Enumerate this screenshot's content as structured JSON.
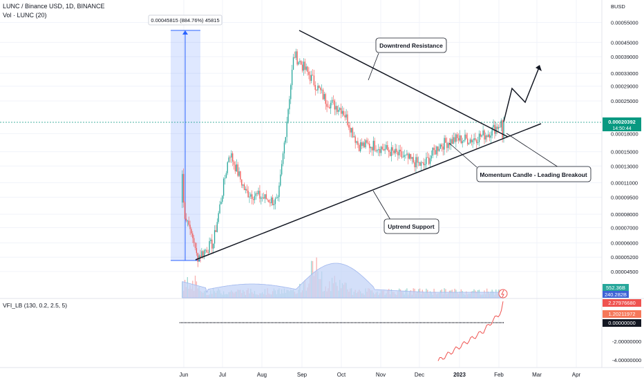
{
  "header": {
    "title": "LUNC / Binance USD, 1D, BINANCE",
    "volume_label": "Vol · LUNC (20)"
  },
  "colors": {
    "up": "#26a69a",
    "down": "#ef5350",
    "volume_ma": "#b3c7f7",
    "vfi": "#ef5350",
    "grid": "#f0f3fa",
    "price_badge": "#089981",
    "measure": "#2962ff"
  },
  "price_axis": {
    "unit": "BUSD",
    "ticks": [
      "0.00055000",
      "0.00045000",
      "0.00039000",
      "0.00033000",
      "0.00029000",
      "0.00025000",
      "0.00018000",
      "0.00015000",
      "0.00013000",
      "0.00011000",
      "0.00009500",
      "0.00008000",
      "0.00007000",
      "0.00006000",
      "0.00005200",
      "0.00004500"
    ],
    "scale": "log"
  },
  "x_axis": {
    "ticks": [
      "Jun",
      "Jul",
      "Aug",
      "Sep",
      "Oct",
      "Nov",
      "Dec",
      "2023",
      "Feb",
      "Mar",
      "Apr"
    ]
  },
  "badges": {
    "last_price": "0.00020392",
    "countdown": "14:50:44",
    "volume": "552.36B",
    "volume_ma": "240.282B",
    "vfi_1": "2.27976680",
    "vfi_2": "1.20211972",
    "vfi_zero": "0.00000000"
  },
  "vfi": {
    "label": "VFI_LB (130, 0.2, 2.5, 5)",
    "ticks": [
      "-2.00000000",
      "-4.00000000"
    ]
  },
  "measure_label": "0.00045815 (884.76%) 45815",
  "annotations": {
    "downtrend": "Downtrend Resistance",
    "uptrend": "Uptrend Support",
    "breakout": "Momentum Candle - Leading Breakout"
  },
  "chart_data": {
    "type": "candlestick",
    "x_start": "2022-05-28",
    "x_step": "7 days",
    "series": [
      {
        "kind": "weekly_close",
        "values": [
          9e-05,
          5.2e-05,
          6e-05,
          0.00015,
          0.0001,
          9.5e-05,
          9e-05,
          0.0004,
          0.00032,
          0.00025,
          0.00023,
          0.00016,
          0.00016,
          0.00015,
          0.00014,
          0.00013,
          0.00016,
          0.00017,
          0.00017,
          0.00018,
          0.00020392
        ]
      }
    ],
    "ylim": [
      4e-05,
      0.0006
    ]
  }
}
